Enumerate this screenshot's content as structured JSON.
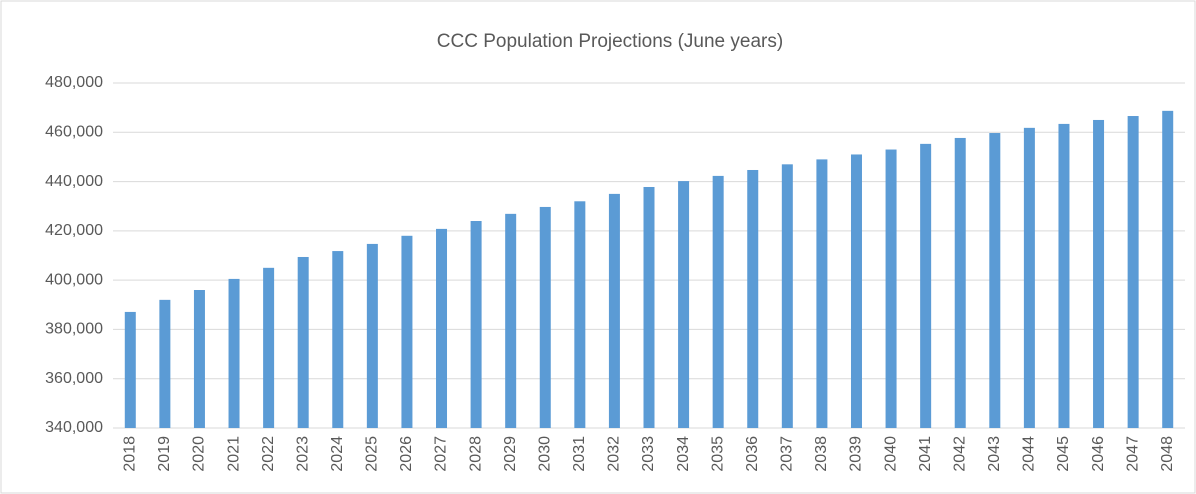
{
  "chart_data": {
    "type": "bar",
    "title": "CCC Population Projections (June years)",
    "categories": [
      "2018",
      "2019",
      "2020",
      "2021",
      "2022",
      "2023",
      "2024",
      "2025",
      "2026",
      "2027",
      "2028",
      "2029",
      "2030",
      "2031",
      "2032",
      "2033",
      "2034",
      "2035",
      "2036",
      "2037",
      "2038",
      "2039",
      "2040",
      "2041",
      "2042",
      "2043",
      "2044",
      "2045",
      "2046",
      "2047",
      "2048"
    ],
    "values": [
      387100,
      392000,
      396000,
      400500,
      405000,
      409400,
      411800,
      414700,
      418000,
      420800,
      424000,
      426900,
      429700,
      432000,
      435000,
      437800,
      440200,
      442300,
      444700,
      447000,
      449000,
      451000,
      453000,
      455300,
      457700,
      459700,
      461800,
      463400,
      465000,
      466600,
      468700
    ],
    "color": "#5b9bd5",
    "ylim": [
      340000,
      480000
    ],
    "yticks": [
      {
        "value": 340000,
        "label": "340,000"
      },
      {
        "value": 360000,
        "label": "360,000"
      },
      {
        "value": 380000,
        "label": "380,000"
      },
      {
        "value": 400000,
        "label": "400,000"
      },
      {
        "value": 420000,
        "label": "420,000"
      },
      {
        "value": 440000,
        "label": "440,000"
      },
      {
        "value": 460000,
        "label": "460,000"
      },
      {
        "value": 480000,
        "label": "480,000"
      }
    ],
    "grid": true
  }
}
